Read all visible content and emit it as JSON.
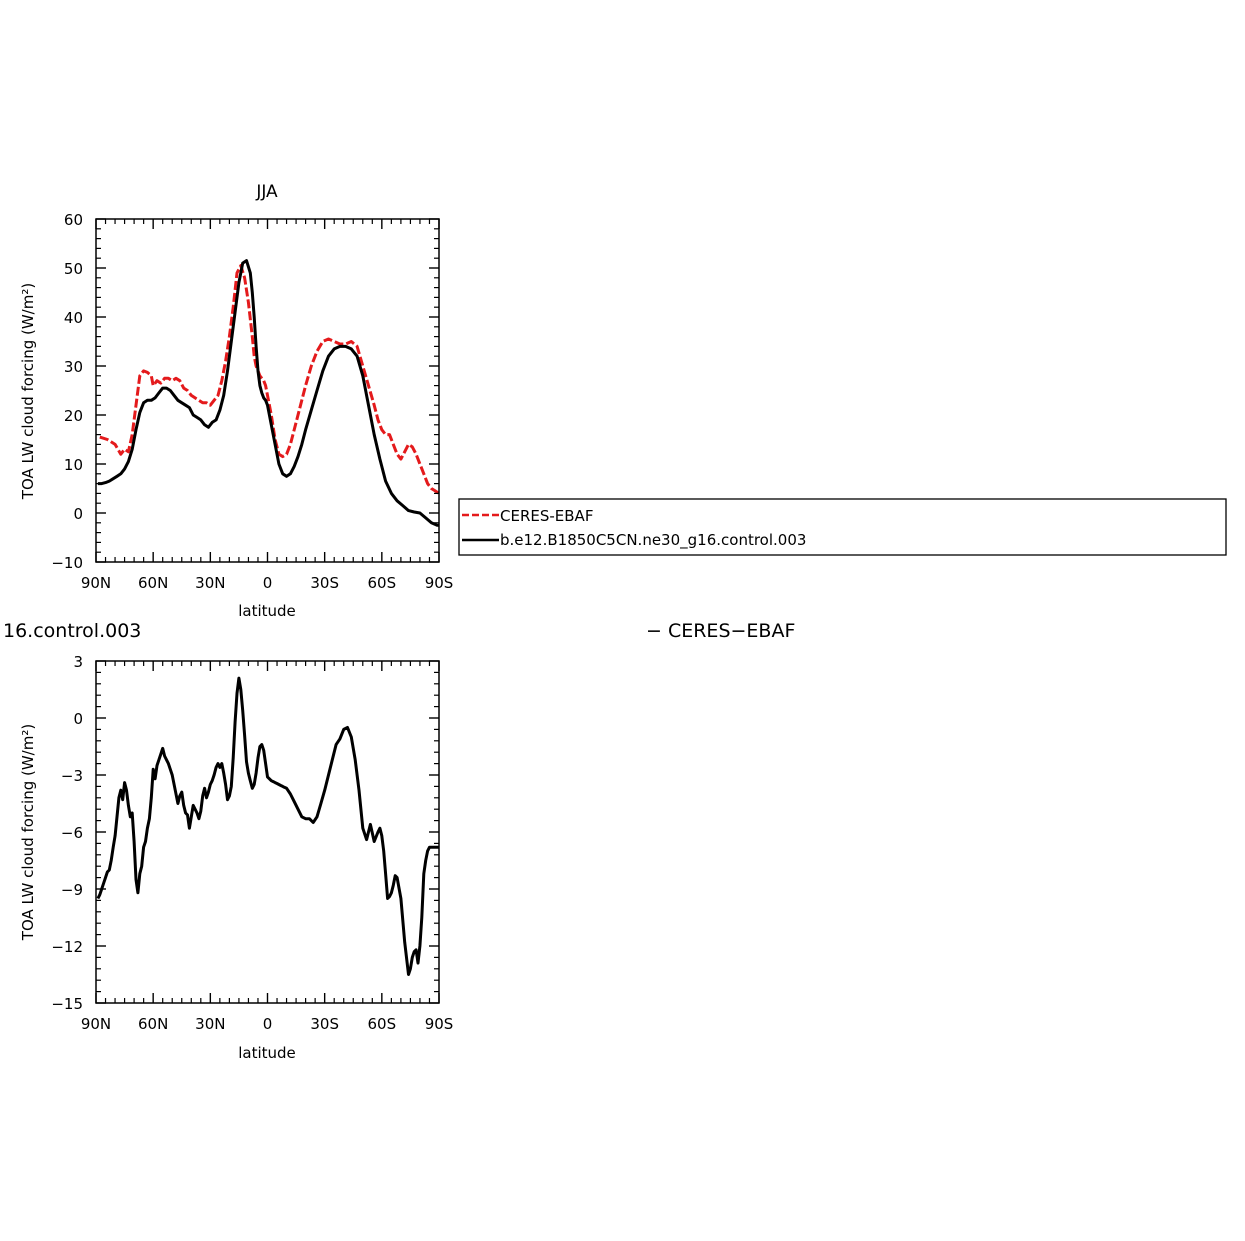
{
  "chart_data": [
    {
      "type": "line",
      "title": "JJA",
      "xlabel": "latitude",
      "ylabel": "TOA LW cloud forcing (W/m²)",
      "xlim": [
        90,
        -90
      ],
      "ylim": [
        -10,
        60
      ],
      "xticks": [
        {
          "value": 90,
          "label": "90N"
        },
        {
          "value": 60,
          "label": "60N"
        },
        {
          "value": 30,
          "label": "30N"
        },
        {
          "value": 0,
          "label": "0"
        },
        {
          "value": -30,
          "label": "30S"
        },
        {
          "value": -60,
          "label": "60S"
        },
        {
          "value": -90,
          "label": "90S"
        }
      ],
      "yticks": [
        {
          "value": 60,
          "label": "60"
        },
        {
          "value": 50,
          "label": "50"
        },
        {
          "value": 40,
          "label": "40"
        },
        {
          "value": 30,
          "label": "30"
        },
        {
          "value": 20,
          "label": "20"
        },
        {
          "value": 10,
          "label": "10"
        },
        {
          "value": 0,
          "label": "0"
        },
        {
          "value": -10,
          "label": "−10"
        }
      ],
      "grid": false,
      "legend_position": "right",
      "series": [
        {
          "name": "CERES-EBAF",
          "color": "#e41a1c",
          "dash": "dashed",
          "x": [
            88,
            84,
            80,
            77,
            75,
            73,
            71,
            69,
            67,
            65,
            63,
            61,
            60,
            58,
            56,
            54,
            52,
            50,
            48,
            46,
            44,
            42,
            40,
            38,
            36,
            34,
            32,
            30,
            28,
            26,
            24,
            22,
            20,
            18,
            16,
            14,
            12,
            10,
            8,
            7,
            6,
            5,
            4,
            3,
            2,
            1,
            0,
            -2,
            -4,
            -6,
            -8,
            -10,
            -12,
            -14,
            -16,
            -18,
            -20,
            -23,
            -26,
            -29,
            -32,
            -35,
            -38,
            -41,
            -44,
            -47,
            -50,
            -53,
            -56,
            -58,
            -60,
            -62,
            -64,
            -66,
            -68,
            -70,
            -72,
            -74,
            -76,
            -78,
            -80,
            -82,
            -84,
            -86,
            -88,
            -90
          ],
          "y": [
            15.5,
            15,
            14,
            12,
            13,
            12.5,
            16,
            22,
            28,
            29,
            28.7,
            28,
            26,
            27,
            26.5,
            27.5,
            27.5,
            27,
            27.5,
            27,
            25.5,
            25,
            24,
            23.5,
            23,
            22.5,
            22.5,
            22,
            23,
            24,
            27,
            31,
            36,
            42,
            49,
            50.5,
            48,
            43,
            36,
            32,
            30,
            29,
            28,
            27.5,
            27,
            26,
            24,
            20,
            15,
            12,
            11.5,
            12,
            14,
            17,
            20,
            23,
            26,
            30,
            33,
            35,
            35.5,
            35,
            34.5,
            34.5,
            35,
            34,
            30,
            26,
            22,
            19,
            17,
            16,
            16,
            14,
            12,
            11,
            12.5,
            14,
            13.5,
            12,
            10,
            8,
            6,
            5,
            4.5,
            4
          ]
        },
        {
          "name": "b.e12.B1850C5CN.ne30_g16.control.003",
          "color": "#000000",
          "dash": "solid",
          "x": [
            89,
            87,
            85,
            83,
            81,
            79,
            77,
            75,
            73,
            71,
            69,
            67,
            65,
            63,
            61,
            59,
            57,
            55,
            53,
            51,
            49,
            47,
            45,
            43,
            41,
            39,
            37,
            35,
            33,
            31,
            29,
            27,
            25,
            23,
            21,
            19,
            17,
            15,
            13,
            11,
            9,
            8,
            7,
            6,
            5,
            4,
            3,
            2,
            1,
            0,
            -2,
            -4,
            -6,
            -8,
            -10,
            -12,
            -14,
            -16,
            -18,
            -20,
            -23,
            -26,
            -29,
            -32,
            -35,
            -38,
            -41,
            -44,
            -47,
            -50,
            -53,
            -56,
            -59,
            -62,
            -65,
            -68,
            -71,
            -74,
            -77,
            -80,
            -83,
            -86,
            -89,
            -90
          ],
          "y": [
            6,
            6,
            6.2,
            6.5,
            7,
            7.5,
            8,
            9,
            10.5,
            13,
            17,
            20.5,
            22.5,
            23,
            23,
            23.5,
            24.5,
            25.5,
            25.5,
            25,
            24,
            23,
            22.5,
            22,
            21.5,
            20,
            19.5,
            19,
            18,
            17.5,
            18.5,
            19,
            21,
            24,
            29,
            35,
            41,
            47,
            51,
            51.5,
            49,
            45,
            40,
            34,
            29,
            26,
            24.5,
            23.5,
            23,
            22,
            18,
            14,
            10,
            8,
            7.5,
            8,
            9.5,
            11.5,
            14,
            17,
            21,
            25,
            29,
            32,
            33.5,
            34,
            34,
            33.5,
            32,
            28,
            22,
            16,
            11,
            6.5,
            4,
            2.5,
            1.5,
            0.5,
            0.2,
            0,
            -1,
            -2,
            -2.5,
            -2.5
          ]
        }
      ]
    },
    {
      "type": "line",
      "title": "16.control.003",
      "title_right": "− CERES−EBAF",
      "xlabel": "latitude",
      "ylabel": "TOA LW cloud forcing (W/m²)",
      "xlim": [
        90,
        -90
      ],
      "ylim": [
        -15,
        3
      ],
      "xticks": [
        {
          "value": 90,
          "label": "90N"
        },
        {
          "value": 60,
          "label": "60N"
        },
        {
          "value": 30,
          "label": "30N"
        },
        {
          "value": 0,
          "label": "0"
        },
        {
          "value": -30,
          "label": "30S"
        },
        {
          "value": -60,
          "label": "60S"
        },
        {
          "value": -90,
          "label": "90S"
        }
      ],
      "yticks": [
        {
          "value": 3,
          "label": "3"
        },
        {
          "value": 0,
          "label": "0"
        },
        {
          "value": -3,
          "label": "−3"
        },
        {
          "value": -6,
          "label": "−6"
        },
        {
          "value": -9,
          "label": "−9"
        },
        {
          "value": -12,
          "label": "−12"
        },
        {
          "value": -15,
          "label": "−15"
        }
      ],
      "grid": false,
      "series": [
        {
          "color": "#000000",
          "dash": "solid",
          "x": [
            89,
            88,
            87,
            86,
            85,
            84,
            83,
            82,
            81,
            80,
            79,
            78,
            77,
            76,
            75,
            74,
            73,
            72,
            71,
            70,
            69,
            68,
            67,
            66,
            65,
            64,
            63,
            62,
            61,
            60,
            59,
            58,
            57,
            56,
            55,
            54,
            53,
            52,
            51,
            50,
            49,
            48,
            47,
            46,
            45,
            44,
            43,
            42,
            41,
            40,
            39,
            38,
            37,
            36,
            35,
            34,
            33,
            32,
            31,
            30,
            29,
            28,
            27,
            26,
            25,
            24,
            23,
            22,
            21,
            20,
            19,
            18,
            17,
            16,
            15,
            14,
            13,
            12,
            11,
            10,
            9,
            8,
            7,
            6,
            5,
            4,
            3,
            2,
            1,
            0,
            -1,
            -2,
            -3,
            -4,
            -5,
            -6,
            -7,
            -8,
            -9,
            -10,
            -12,
            -14,
            -16,
            -18,
            -20,
            -22,
            -24,
            -26,
            -28,
            -30,
            -32,
            -34,
            -36,
            -38,
            -40,
            -42,
            -44,
            -46,
            -48,
            -50,
            -52,
            -54,
            -56,
            -58,
            -59,
            -60,
            -61,
            -62,
            -63,
            -64,
            -65,
            -66,
            -67,
            -68,
            -70,
            -72,
            -74,
            -75,
            -76,
            -77,
            -78,
            -79,
            -80,
            -81,
            -82,
            -83,
            -84,
            -85,
            -86,
            -87,
            -88,
            -89,
            -90
          ],
          "y": [
            -9.5,
            -9.3,
            -9,
            -8.7,
            -8.4,
            -8.1,
            -8,
            -7.5,
            -6.8,
            -6.2,
            -5.2,
            -4.2,
            -3.8,
            -4.3,
            -3.4,
            -3.8,
            -4.6,
            -5.2,
            -5,
            -6.5,
            -8.5,
            -9.2,
            -8.2,
            -7.8,
            -6.8,
            -6.5,
            -5.8,
            -5.3,
            -4.2,
            -2.7,
            -3.2,
            -2.5,
            -2.2,
            -1.9,
            -1.6,
            -2,
            -2.2,
            -2.4,
            -2.7,
            -3.0,
            -3.5,
            -4,
            -4.5,
            -4.1,
            -3.9,
            -4.6,
            -5.0,
            -5.1,
            -5.8,
            -5.2,
            -4.6,
            -4.8,
            -5.0,
            -5.3,
            -4.9,
            -4.1,
            -3.7,
            -4.2,
            -3.9,
            -3.5,
            -3.3,
            -3.0,
            -2.6,
            -2.4,
            -2.6,
            -2.4,
            -2.9,
            -3.5,
            -4.3,
            -4.1,
            -3.6,
            -2.1,
            -0.2,
            1.3,
            2.1,
            1.5,
            0.4,
            -0.9,
            -2.3,
            -2.9,
            -3.3,
            -3.7,
            -3.5,
            -2.9,
            -2.1,
            -1.5,
            -1.4,
            -1.7,
            -2.4,
            -3.1,
            -3.2,
            -3.3,
            -3.35,
            -3.4,
            -3.45,
            -3.5,
            -3.55,
            -3.6,
            -3.65,
            -3.7,
            -4,
            -4.4,
            -4.8,
            -5.2,
            -5.3,
            -5.3,
            -5.5,
            -5.2,
            -4.5,
            -3.8,
            -3.0,
            -2.2,
            -1.4,
            -1.1,
            -0.6,
            -0.5,
            -1.0,
            -2.2,
            -3.8,
            -5.8,
            -6.4,
            -5.6,
            -6.5,
            -6.0,
            -5.8,
            -6.2,
            -7.0,
            -8.2,
            -9.5,
            -9.4,
            -9.2,
            -8.8,
            -8.3,
            -8.4,
            -9.5,
            -11.8,
            -13.5,
            -13.2,
            -12.6,
            -12.3,
            -12.2,
            -12.9,
            -12.0,
            -10.5,
            -8.2,
            -7.5,
            -7.0,
            -6.8,
            -6.8,
            -6.8,
            -6.8,
            -6.8,
            -6.8
          ]
        }
      ]
    }
  ]
}
